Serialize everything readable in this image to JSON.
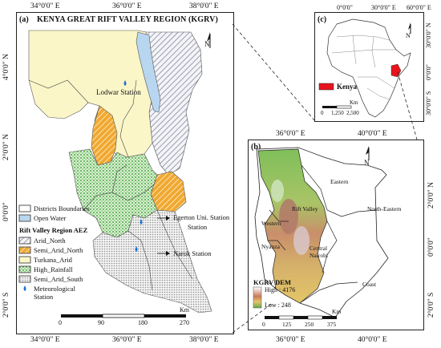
{
  "panel_a": {
    "label": "(a)",
    "title": "KENYA GREAT RIFT VALLEY REGION (KGRV)",
    "top_ticks": [
      "34°0'0\" E",
      "36°0'0\" E",
      "38°0'0\" E"
    ],
    "bottom_ticks": [
      "34°0'0\" E",
      "36°0'0\" E",
      "38°0'0\" E"
    ],
    "left_ticks": [
      "4°0'0\" N",
      "2°0'0\" N",
      "0°0'0\"",
      "2°0'0\" S"
    ],
    "north": "N",
    "station_lodwar": "Lodwar Station",
    "station_egerton": "Egerton Uni. Station",
    "station_narok": "Narok Station",
    "scale_unit": "Km",
    "scale_labels": [
      "0",
      "90",
      "180",
      "270"
    ],
    "legend": {
      "districts": "Districts Boundaries",
      "water": "Open Water",
      "aez_title": "Rift Valley Region AEZ",
      "arid_north": "Arid_North",
      "semi_arid_north": "Semi_Arid_North",
      "turkana": "Turkana_Arid",
      "high_rainfall": "High_Rainfall",
      "semi_arid_south": "Semi_Arid_South",
      "met_station": "Meteorological Station"
    }
  },
  "panel_b": {
    "label": "(b)",
    "top_ticks": [
      "36°0'0\" E",
      "40°0'0\" E"
    ],
    "bottom_ticks": [
      "36°0'0\" E",
      "40°0'0\" E"
    ],
    "right_ticks": [
      "2°0'0\" N",
      "0°0'0\"",
      "2°0'0\" S"
    ],
    "north": "N",
    "regions": {
      "eastern": "Eastern",
      "north_eastern": "North-Eastern",
      "rift_valley": "Rift Valley",
      "western": "Western",
      "nyanza": "Nyanza",
      "central": "Central",
      "nairobi": "Nairobi",
      "coast": "Coast"
    },
    "dem_title": "KGRV DEM",
    "dem_high": "High : 4176",
    "dem_low": "Low : 248",
    "scale_unit": "Km",
    "scale_labels": [
      "0",
      "125",
      "250",
      "375"
    ]
  },
  "panel_c": {
    "label": "(c)",
    "top_ticks": [
      "0°0'0\"",
      "30°0'0\" E",
      "60°0'0\" E"
    ],
    "right_ticks": [
      "30°0'0\" N",
      "0°0'0\"",
      "30°0'0\" S"
    ],
    "north": "N",
    "legend_kenya": "Kenya",
    "scale_unit": "Km",
    "scale_labels": [
      "0",
      "1,250",
      "2,500"
    ]
  },
  "colors": {
    "arid_north": "#9aa0b8",
    "semi_arid_north": "#f0a830",
    "turkana": "#fbf6c8",
    "high_rainfall": "#7fcf72",
    "semi_arid_south": "#c9c9c9",
    "water": "#b9d6f0",
    "kenya": "#e8141c",
    "dem_high": "#ffffff",
    "dem_mid": "#c87a5a",
    "dem_low": "#5fa84a"
  }
}
